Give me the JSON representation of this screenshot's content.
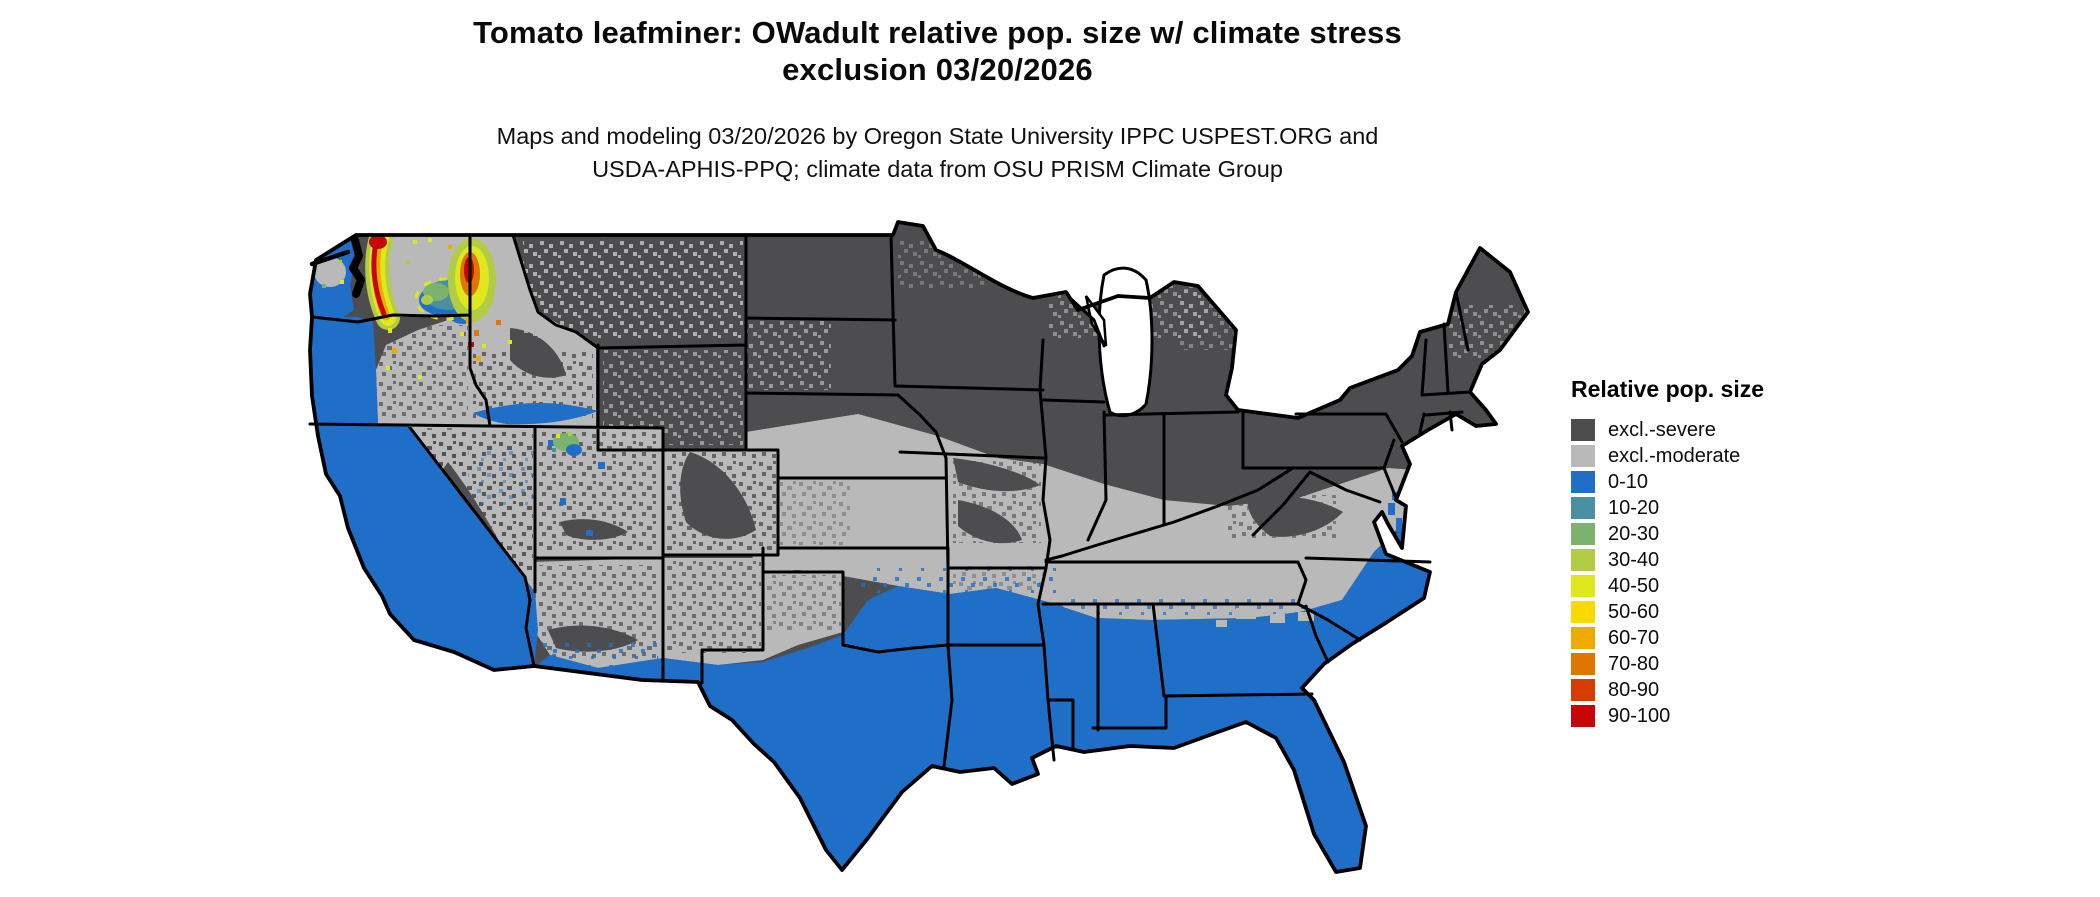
{
  "header": {
    "title_line1": "Tomato leafminer: OWadult relative pop. size w/ climate stress",
    "title_line2": "exclusion 03/20/2026",
    "subtitle_line1": "Maps and modeling 03/20/2026 by Oregon State University IPPC USPEST.ORG and",
    "subtitle_line2": "USDA-APHIS-PPQ; climate data from OSU PRISM Climate Group"
  },
  "legend": {
    "title": "Relative pop. size",
    "items": [
      {
        "label": "excl.-severe",
        "color": "#4d4d50"
      },
      {
        "label": "excl.-moderate",
        "color": "#b9b9b9"
      },
      {
        "label": "0-10",
        "color": "#1f6fc8"
      },
      {
        "label": "10-20",
        "color": "#4a90a2"
      },
      {
        "label": "20-30",
        "color": "#7ab26e"
      },
      {
        "label": "30-40",
        "color": "#b2cc45"
      },
      {
        "label": "40-50",
        "color": "#dfe81c"
      },
      {
        "label": "50-60",
        "color": "#f8da00"
      },
      {
        "label": "60-70",
        "color": "#efaa02"
      },
      {
        "label": "70-80",
        "color": "#e07503"
      },
      {
        "label": "80-90",
        "color": "#d63c00"
      },
      {
        "label": "90-100",
        "color": "#c80508"
      }
    ]
  },
  "map": {
    "region": "Continental United States",
    "colors": {
      "excluded_severe": "#4d4d50",
      "excluded_moderate": "#b9b9b9",
      "population_0_10": "#1f6fc8",
      "state_border": "#000000",
      "background": "#ffffff"
    }
  }
}
